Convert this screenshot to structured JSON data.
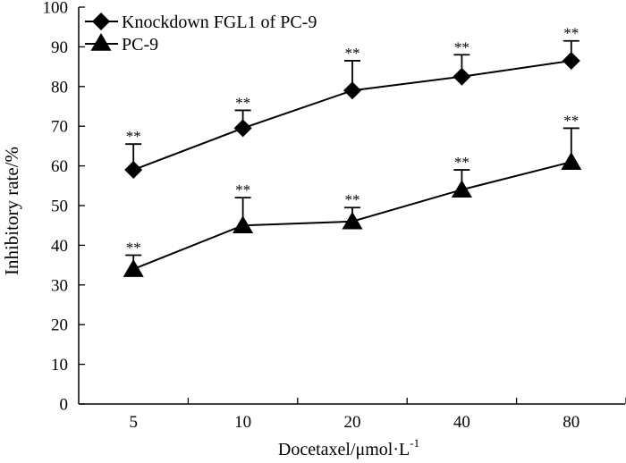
{
  "chart_data": {
    "type": "line",
    "title": "",
    "xlabel": "Docetaxel/μmol·L",
    "xlabel_sup": "-1",
    "ylabel": "Inhibitory rate/%",
    "categories": [
      "5",
      "10",
      "20",
      "40",
      "80"
    ],
    "ylim": [
      0,
      100
    ],
    "yticks": [
      "0",
      "10",
      "20",
      "30",
      "40",
      "50",
      "60",
      "70",
      "80",
      "90",
      "100"
    ],
    "grid": false,
    "legend_position": "top-left",
    "series": [
      {
        "name": "Knockdown FGL1 of PC-9",
        "marker": "diamond",
        "values": [
          59,
          69.5,
          79,
          82.5,
          86.5
        ],
        "error_upper": [
          6.5,
          4.5,
          7.5,
          5.5,
          5
        ],
        "significance": [
          "**",
          "**",
          "**",
          "**",
          "**"
        ]
      },
      {
        "name": "PC-9",
        "marker": "triangle",
        "values": [
          34,
          45,
          46,
          54,
          61
        ],
        "error_upper": [
          3.5,
          7,
          3.5,
          5,
          8.5
        ],
        "significance": [
          "**",
          "**",
          "**",
          "**",
          "**"
        ]
      }
    ]
  }
}
